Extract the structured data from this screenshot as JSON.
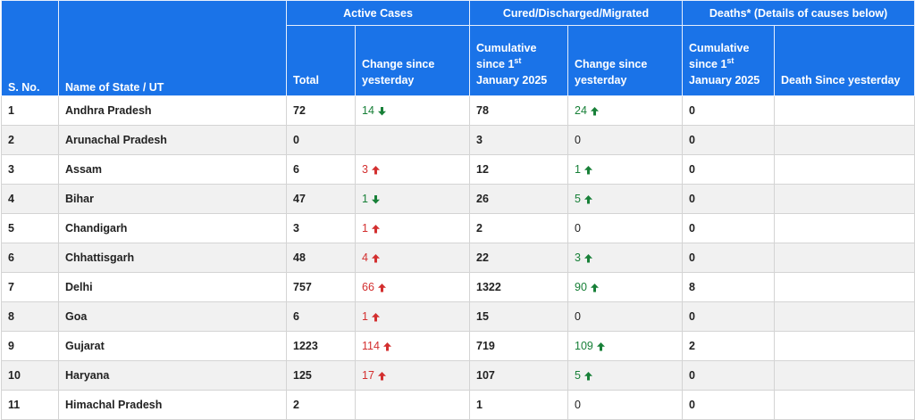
{
  "header": {
    "col_sno": "S. No.",
    "col_state": "Name of State / UT",
    "group_active": "Active Cases",
    "group_cured": "Cured/Discharged/Migrated",
    "group_deaths": "Deaths* (Details of causes below)",
    "active_total": "Total",
    "active_change": "Change since yesterday",
    "cured_cum_pre": "Cumulative since 1",
    "cured_cum_sup": "st",
    "cured_cum_post": "January 2025",
    "cured_change": "Change since yesterday",
    "deaths_cum_pre": "Cumulative since 1",
    "deaths_cum_sup": "st",
    "deaths_cum_post": "January 2025",
    "deaths_since": "Death Since yesterday"
  },
  "colors": {
    "header_bg": "#1a73e8",
    "up": "#d32f2f",
    "down": "#188038",
    "cured_up": "#188038"
  },
  "rows": [
    {
      "sno": "1",
      "state": "Andhra Pradesh",
      "active_total": "72",
      "active_change": "14",
      "active_dir": "down",
      "cured_cum": "78",
      "cured_change": "24",
      "cured_dir": "up",
      "deaths_cum": "0",
      "death_since": ""
    },
    {
      "sno": "2",
      "state": "Arunachal Pradesh",
      "active_total": "0",
      "active_change": "",
      "active_dir": "",
      "cured_cum": "3",
      "cured_change": "0",
      "cured_dir": "",
      "deaths_cum": "0",
      "death_since": ""
    },
    {
      "sno": "3",
      "state": "Assam",
      "active_total": "6",
      "active_change": "3",
      "active_dir": "up",
      "cured_cum": "12",
      "cured_change": "1",
      "cured_dir": "up",
      "deaths_cum": "0",
      "death_since": ""
    },
    {
      "sno": "4",
      "state": "Bihar",
      "active_total": "47",
      "active_change": "1",
      "active_dir": "down",
      "cured_cum": "26",
      "cured_change": "5",
      "cured_dir": "up",
      "deaths_cum": "0",
      "death_since": ""
    },
    {
      "sno": "5",
      "state": "Chandigarh",
      "active_total": "3",
      "active_change": "1",
      "active_dir": "up",
      "cured_cum": "2",
      "cured_change": "0",
      "cured_dir": "",
      "deaths_cum": "0",
      "death_since": ""
    },
    {
      "sno": "6",
      "state": "Chhattisgarh",
      "active_total": "48",
      "active_change": "4",
      "active_dir": "up",
      "cured_cum": "22",
      "cured_change": "3",
      "cured_dir": "up",
      "deaths_cum": "0",
      "death_since": ""
    },
    {
      "sno": "7",
      "state": "Delhi",
      "active_total": "757",
      "active_change": "66",
      "active_dir": "up",
      "cured_cum": "1322",
      "cured_change": "90",
      "cured_dir": "up",
      "deaths_cum": "8",
      "death_since": ""
    },
    {
      "sno": "8",
      "state": "Goa",
      "active_total": "6",
      "active_change": "1",
      "active_dir": "up",
      "cured_cum": "15",
      "cured_change": "0",
      "cured_dir": "",
      "deaths_cum": "0",
      "death_since": ""
    },
    {
      "sno": "9",
      "state": "Gujarat",
      "active_total": "1223",
      "active_change": "114",
      "active_dir": "up",
      "cured_cum": "719",
      "cured_change": "109",
      "cured_dir": "up",
      "deaths_cum": "2",
      "death_since": ""
    },
    {
      "sno": "10",
      "state": "Haryana",
      "active_total": "125",
      "active_change": "17",
      "active_dir": "up",
      "cured_cum": "107",
      "cured_change": "5",
      "cured_dir": "up",
      "deaths_cum": "0",
      "death_since": ""
    },
    {
      "sno": "11",
      "state": "Himachal Pradesh",
      "active_total": "2",
      "active_change": "",
      "active_dir": "",
      "cured_cum": "1",
      "cured_change": "0",
      "cured_dir": "",
      "deaths_cum": "0",
      "death_since": ""
    }
  ]
}
